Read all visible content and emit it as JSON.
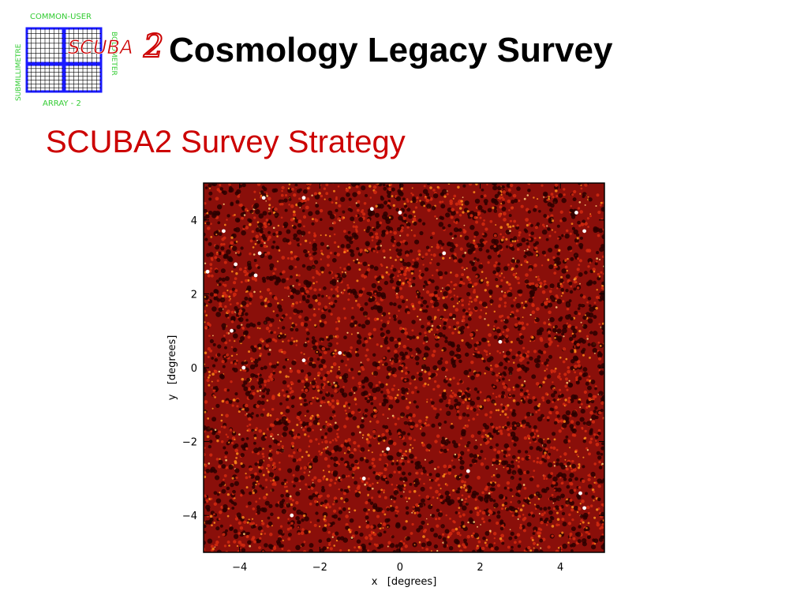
{
  "slide": {
    "title": "Cosmology Legacy Survey",
    "subtitle": "SCUBA2 Survey Strategy",
    "title_color": "#000000",
    "subtitle_color": "#cc0000"
  },
  "logo": {
    "top_text": "COMMON-USER",
    "left_text": "SUBMILLIMETRE",
    "right_text": "BOLOMETER",
    "bottom_text": "ARRAY - 2",
    "wordmark": "SCUBA",
    "wordmark_digit": "2",
    "text_color": "#33cc33",
    "grid_color": "#1a1aff",
    "wordmark_color": "#cc0000"
  },
  "chart_data": {
    "type": "heatmap",
    "title": "",
    "xlabel": "x   [degrees]",
    "ylabel": "y   [degrees]",
    "xlim": [
      -4.9,
      5.1
    ],
    "ylim": [
      -5.0,
      5.0
    ],
    "xticks": [
      -4,
      -2,
      0,
      2,
      4
    ],
    "yticks": [
      -4,
      -2,
      0,
      2,
      4
    ],
    "xtick_labels": [
      "−4",
      "−2",
      "0",
      "2",
      "4"
    ],
    "ytick_labels": [
      "−4",
      "−2",
      "0",
      "2",
      "4"
    ],
    "background_color": "#8a0f0a",
    "colormap": [
      "#2a0000",
      "#8a0f0a",
      "#d42a10",
      "#ff8c1a",
      "#ffffff"
    ],
    "bright_sources": [
      {
        "x": -3.4,
        "y": 4.6
      },
      {
        "x": -2.4,
        "y": 4.6
      },
      {
        "x": -0.7,
        "y": 4.3
      },
      {
        "x": 0.0,
        "y": 4.2
      },
      {
        "x": 4.4,
        "y": 4.2
      },
      {
        "x": 4.6,
        "y": 3.7
      },
      {
        "x": -4.4,
        "y": 3.7
      },
      {
        "x": -4.1,
        "y": 2.8
      },
      {
        "x": -3.5,
        "y": 3.1
      },
      {
        "x": 1.1,
        "y": 3.1
      },
      {
        "x": -4.8,
        "y": 2.6
      },
      {
        "x": -3.6,
        "y": 2.5
      },
      {
        "x": -4.2,
        "y": 1.0
      },
      {
        "x": 2.5,
        "y": 0.7
      },
      {
        "x": -1.5,
        "y": 0.4
      },
      {
        "x": -2.4,
        "y": 0.2
      },
      {
        "x": -3.9,
        "y": 0.0
      },
      {
        "x": -0.3,
        "y": -2.2
      },
      {
        "x": 1.7,
        "y": -2.8
      },
      {
        "x": -0.9,
        "y": -3.0
      },
      {
        "x": 4.5,
        "y": -3.4
      },
      {
        "x": 4.6,
        "y": -3.8
      },
      {
        "x": -2.7,
        "y": -4.0
      }
    ]
  }
}
